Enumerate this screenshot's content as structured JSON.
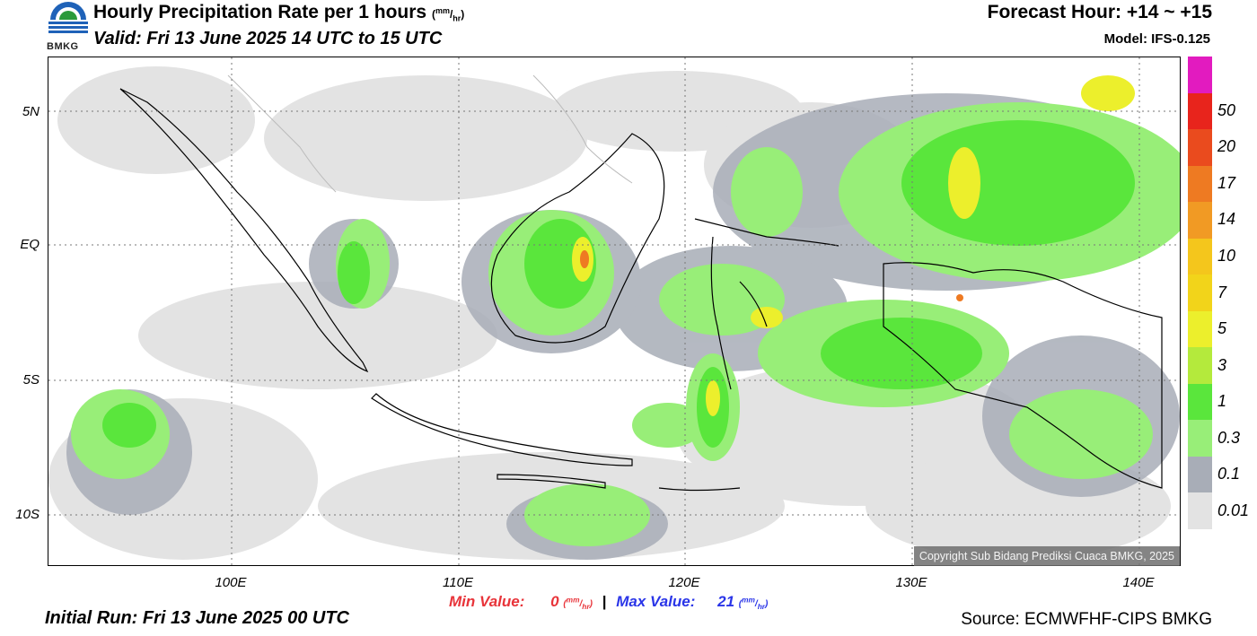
{
  "header": {
    "title": "Hourly Precipitation Rate per 1 hours",
    "title_unit_open": "(",
    "title_unit_num": "mm",
    "title_unit_slash": "/",
    "title_unit_den": "hr",
    "title_unit_close": ")",
    "valid": "Valid: Fri 13 June 2025 14 UTC to 15 UTC",
    "forecast_hour": "Forecast Hour: +14 ~ +15",
    "model": "Model: IFS-0.125",
    "logo_text": "BMKG"
  },
  "map": {
    "lat_labels": [
      "5N",
      "EQ",
      "5S",
      "10S"
    ],
    "lon_labels": [
      "100E",
      "110E",
      "120E",
      "130E",
      "140E"
    ],
    "copyright": "Copyright Sub Bidang Prediksi Cuaca BMKG, 2025"
  },
  "colorbar": {
    "labels": [
      "50",
      "20",
      "17",
      "14",
      "10",
      "7",
      "5",
      "3",
      "1",
      "0.3",
      "0.1",
      "0.01"
    ],
    "colors": [
      "#e21bbf",
      "#e8241c",
      "#ea4b1e",
      "#ee7a22",
      "#f19a24",
      "#f4c61c",
      "#f2d41a",
      "#ecef2c",
      "#b4ea3c",
      "#5ae63c",
      "#98ee78",
      "#a8adb7",
      "#e3e3e3"
    ]
  },
  "footer": {
    "min_label": "Min Value:",
    "min_value": "0",
    "max_label": "Max Value:",
    "max_value": "21",
    "unit_num": "mm",
    "unit_den": "hr",
    "separator": "|",
    "initial_run": "Initial Run: Fri 13 June 2025 00 UTC",
    "source": "Source: ECMWFHF-CIPS BMKG"
  }
}
